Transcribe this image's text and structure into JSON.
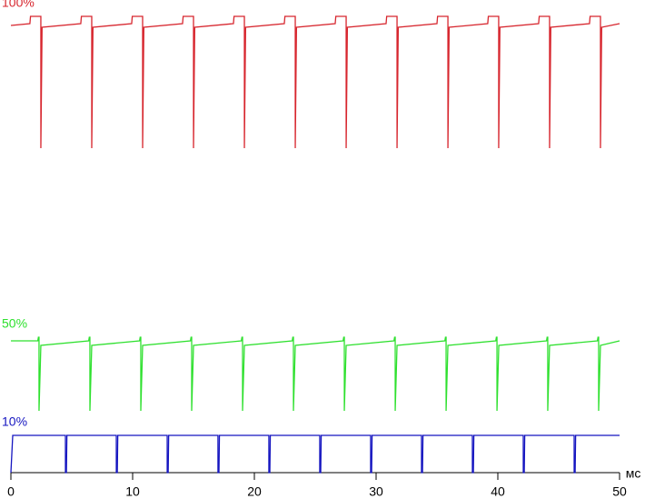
{
  "chart_data": {
    "type": "line",
    "xlim": [
      0,
      50
    ],
    "xticks": [
      0,
      10,
      20,
      30,
      40,
      50
    ],
    "x_unit": "мс",
    "ylim": [
      0,
      500
    ],
    "series": [
      {
        "name": "100%",
        "color": "#d7262e",
        "x": [
          0,
          1.56,
          1.61,
          2.46,
          2.46,
          2.56,
          5.74,
          5.79,
          6.64,
          6.64,
          6.74,
          9.92,
          9.97,
          10.82,
          10.82,
          10.92,
          14.1,
          14.15,
          15,
          15,
          15.1,
          18.28,
          18.33,
          19.18,
          19.18,
          19.28,
          22.46,
          22.51,
          23.36,
          23.36,
          23.46,
          26.64,
          26.69,
          27.54,
          27.54,
          27.64,
          30.82,
          30.87,
          31.72,
          31.72,
          31.82,
          35,
          35.05,
          35.9,
          35.9,
          36,
          39.17,
          39.22,
          40.07,
          40.07,
          40.17,
          43.35,
          43.4,
          44.25,
          44.25,
          44.35,
          47.53,
          47.58,
          48.43,
          48.43,
          48.53,
          50
        ],
        "values": [
          492,
          494,
          502,
          502,
          357,
          490,
          494,
          502,
          502,
          357,
          490,
          494,
          502,
          502,
          357,
          490,
          494,
          502,
          502,
          357,
          490,
          494,
          502,
          502,
          357,
          490,
          494,
          502,
          502,
          357,
          490,
          494,
          502,
          502,
          357,
          490,
          494,
          502,
          502,
          357,
          490,
          494,
          502,
          502,
          357,
          490,
          494,
          502,
          502,
          357,
          490,
          494,
          502,
          502,
          357,
          490,
          494,
          502,
          502,
          357,
          490,
          494
        ]
      },
      {
        "name": "50%",
        "color": "#2ee02e",
        "x": [
          0,
          2.21,
          2.26,
          2.31,
          2.31,
          2.46,
          6.39,
          6.44,
          6.49,
          6.49,
          6.64,
          10.57,
          10.62,
          10.67,
          10.67,
          10.82,
          14.75,
          14.8,
          14.85,
          14.85,
          15,
          18.93,
          18.98,
          19.03,
          19.03,
          19.18,
          23.11,
          23.16,
          23.21,
          23.21,
          23.36,
          27.29,
          27.34,
          27.39,
          27.39,
          27.54,
          31.47,
          31.52,
          31.57,
          31.57,
          31.72,
          35.65,
          35.7,
          35.75,
          35.75,
          35.9,
          39.83,
          39.88,
          39.93,
          39.93,
          40.08,
          44,
          44.05,
          44.1,
          44.1,
          44.25,
          48.18,
          48.23,
          48.28,
          48.28,
          48.43,
          50
        ],
        "values": [
          145,
          145,
          149,
          149,
          68,
          140,
          145,
          149,
          149,
          68,
          140,
          145,
          149,
          149,
          68,
          140,
          145,
          149,
          149,
          68,
          140,
          145,
          149,
          149,
          68,
          140,
          145,
          149,
          149,
          68,
          140,
          145,
          149,
          149,
          68,
          140,
          145,
          149,
          149,
          68,
          140,
          145,
          149,
          149,
          68,
          140,
          145,
          149,
          149,
          68,
          140,
          145,
          149,
          149,
          68,
          140,
          145,
          149,
          149,
          68,
          140,
          145
        ]
      },
      {
        "name": "10%",
        "color": "#1515c0",
        "x": [
          0,
          0.15,
          4.48,
          4.48,
          4.56,
          4.6,
          8.66,
          8.66,
          8.74,
          8.78,
          12.84,
          12.84,
          12.92,
          12.96,
          17.01,
          17.01,
          17.09,
          17.13,
          21.19,
          21.19,
          21.27,
          21.31,
          25.37,
          25.37,
          25.45,
          25.49,
          29.55,
          29.55,
          29.63,
          29.67,
          33.73,
          33.73,
          33.81,
          33.85,
          37.91,
          37.91,
          37.99,
          38.03,
          42.09,
          42.09,
          42.17,
          42.21,
          46.27,
          46.27,
          46.35,
          46.39,
          50
        ],
        "values": [
          0,
          41,
          41,
          0,
          0,
          41,
          41,
          0,
          0,
          41,
          41,
          0,
          0,
          41,
          41,
          0,
          0,
          41,
          41,
          0,
          0,
          41,
          41,
          0,
          0,
          41,
          41,
          0,
          0,
          41,
          41,
          0,
          0,
          41,
          41,
          0,
          0,
          41,
          41,
          0,
          0,
          41,
          41,
          0,
          0,
          41,
          41
        ]
      }
    ]
  }
}
